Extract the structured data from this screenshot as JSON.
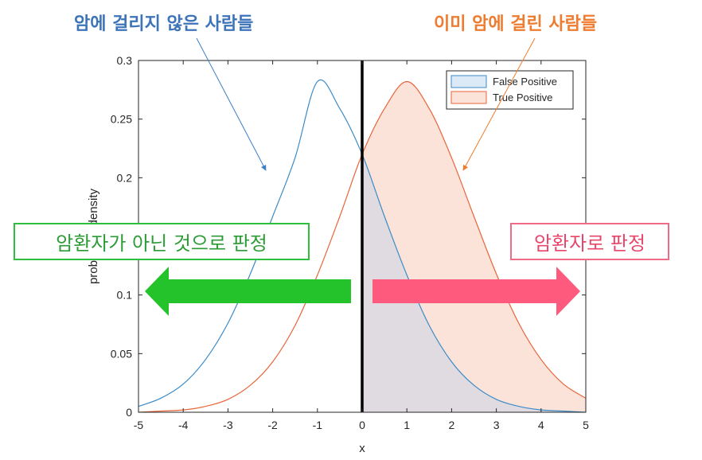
{
  "annotations": {
    "top_left": "암에 걸리지 않은 사람들",
    "top_right": "이미 암에 걸린 사람들",
    "box_left": "암환자가 아닌 것으로 판정",
    "box_right": "암환자로 판정"
  },
  "colors": {
    "false_positive_line": "#3b8bc7",
    "false_positive_fill": "#dbeaf6",
    "true_positive_line": "#e8653a",
    "true_positive_fill": "#fbe3d9",
    "overlap_fill": "#e0dbe0",
    "threshold_line": "#000000",
    "arrow_left": "#24c32c",
    "arrow_right": "#fe5a7e",
    "ann_left": "#3d73b8",
    "ann_right": "#ef7b2f"
  },
  "chart_data": {
    "type": "area",
    "xlabel": "x",
    "ylabel": "probability density",
    "xlim": [
      -5,
      5
    ],
    "ylim": [
      0,
      0.3
    ],
    "xticks": [
      -5,
      -4,
      -3,
      -2,
      -1,
      0,
      1,
      2,
      3,
      4,
      5
    ],
    "yticks": [
      "0",
      "0.05",
      "0.1",
      "0.15",
      "0.2",
      "0.25",
      "0.3"
    ],
    "threshold_x": 0,
    "legend_position": "top-right",
    "grid": false,
    "series": [
      {
        "name": "False Positive",
        "x": [
          -5,
          -4.5,
          -4,
          -3.5,
          -3,
          -2.5,
          -2,
          -1.5,
          -1,
          -0.5,
          0,
          0.5,
          1,
          1.5,
          2,
          2.5,
          3,
          3.5,
          4,
          4.5,
          5
        ],
        "y": [
          0.005,
          0.012,
          0.024,
          0.045,
          0.076,
          0.118,
          0.167,
          0.217,
          0.282,
          0.259,
          0.22,
          0.167,
          0.117,
          0.074,
          0.043,
          0.023,
          0.011,
          0.005,
          0.002,
          0.001,
          0.0
        ],
        "fill_from_x": 0
      },
      {
        "name": "True Positive",
        "x": [
          -5,
          -4.5,
          -4,
          -3.5,
          -3,
          -2.5,
          -2,
          -1.5,
          -1,
          -0.5,
          0,
          0.5,
          1,
          1.5,
          2,
          2.5,
          3,
          3.5,
          4,
          4.5,
          5
        ],
        "y": [
          0.0,
          0.001,
          0.002,
          0.005,
          0.011,
          0.023,
          0.043,
          0.074,
          0.117,
          0.167,
          0.22,
          0.259,
          0.282,
          0.259,
          0.217,
          0.167,
          0.118,
          0.076,
          0.045,
          0.024,
          0.012
        ],
        "fill_from_x": 0
      }
    ]
  }
}
